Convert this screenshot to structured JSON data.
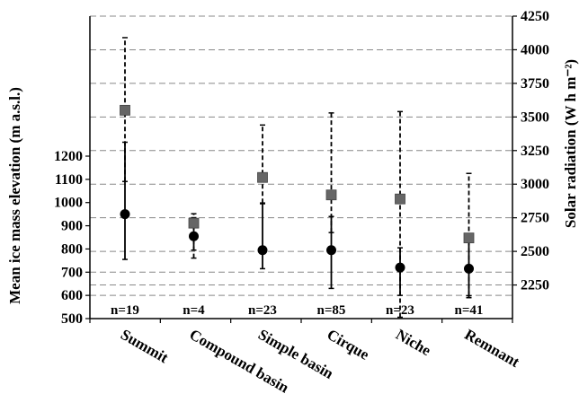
{
  "chart_data": {
    "type": "scatter",
    "categories": [
      "Summit",
      "Compound basin",
      "Simple basin",
      "Cirque",
      "Niche",
      "Remnant"
    ],
    "n_labels": [
      "n=19",
      "n=4",
      "n=23",
      "n=85",
      "n=23",
      "n=41"
    ],
    "ylabel_left": "Mean ice mass elevation (m a.s.l.)",
    "ylabel_right": "Solar radiation (W h m⁻²)",
    "left_axis": {
      "ylim": [
        500,
        1200
      ],
      "ticks": [
        500,
        600,
        700,
        800,
        900,
        1000,
        1100,
        1200
      ]
    },
    "right_axis": {
      "ylim": [
        2250,
        4250
      ],
      "ticks": [
        2250,
        2500,
        2750,
        3000,
        3250,
        3500,
        3750,
        4000,
        4250
      ]
    },
    "grid": true,
    "series": [
      {
        "axis": "left",
        "marker": "circle",
        "line_style": "solid",
        "color": "#000000",
        "values": [
          950,
          855,
          795,
          795,
          720,
          715
        ],
        "error_low": [
          755,
          795,
          715,
          630,
          600,
          590
        ],
        "error_high": [
          1260,
          935,
          995,
          940,
          805,
          855
        ]
      },
      {
        "axis": "right",
        "marker": "square",
        "line_style": "dashed",
        "color": "#666666",
        "values": [
          3550,
          2710,
          3050,
          2920,
          2890,
          2600
        ],
        "error_low": [
          3020,
          2450,
          2860,
          2640,
          2010,
          2170
        ],
        "error_high": [
          4090,
          2780,
          3440,
          3530,
          3540,
          3080
        ]
      }
    ]
  }
}
